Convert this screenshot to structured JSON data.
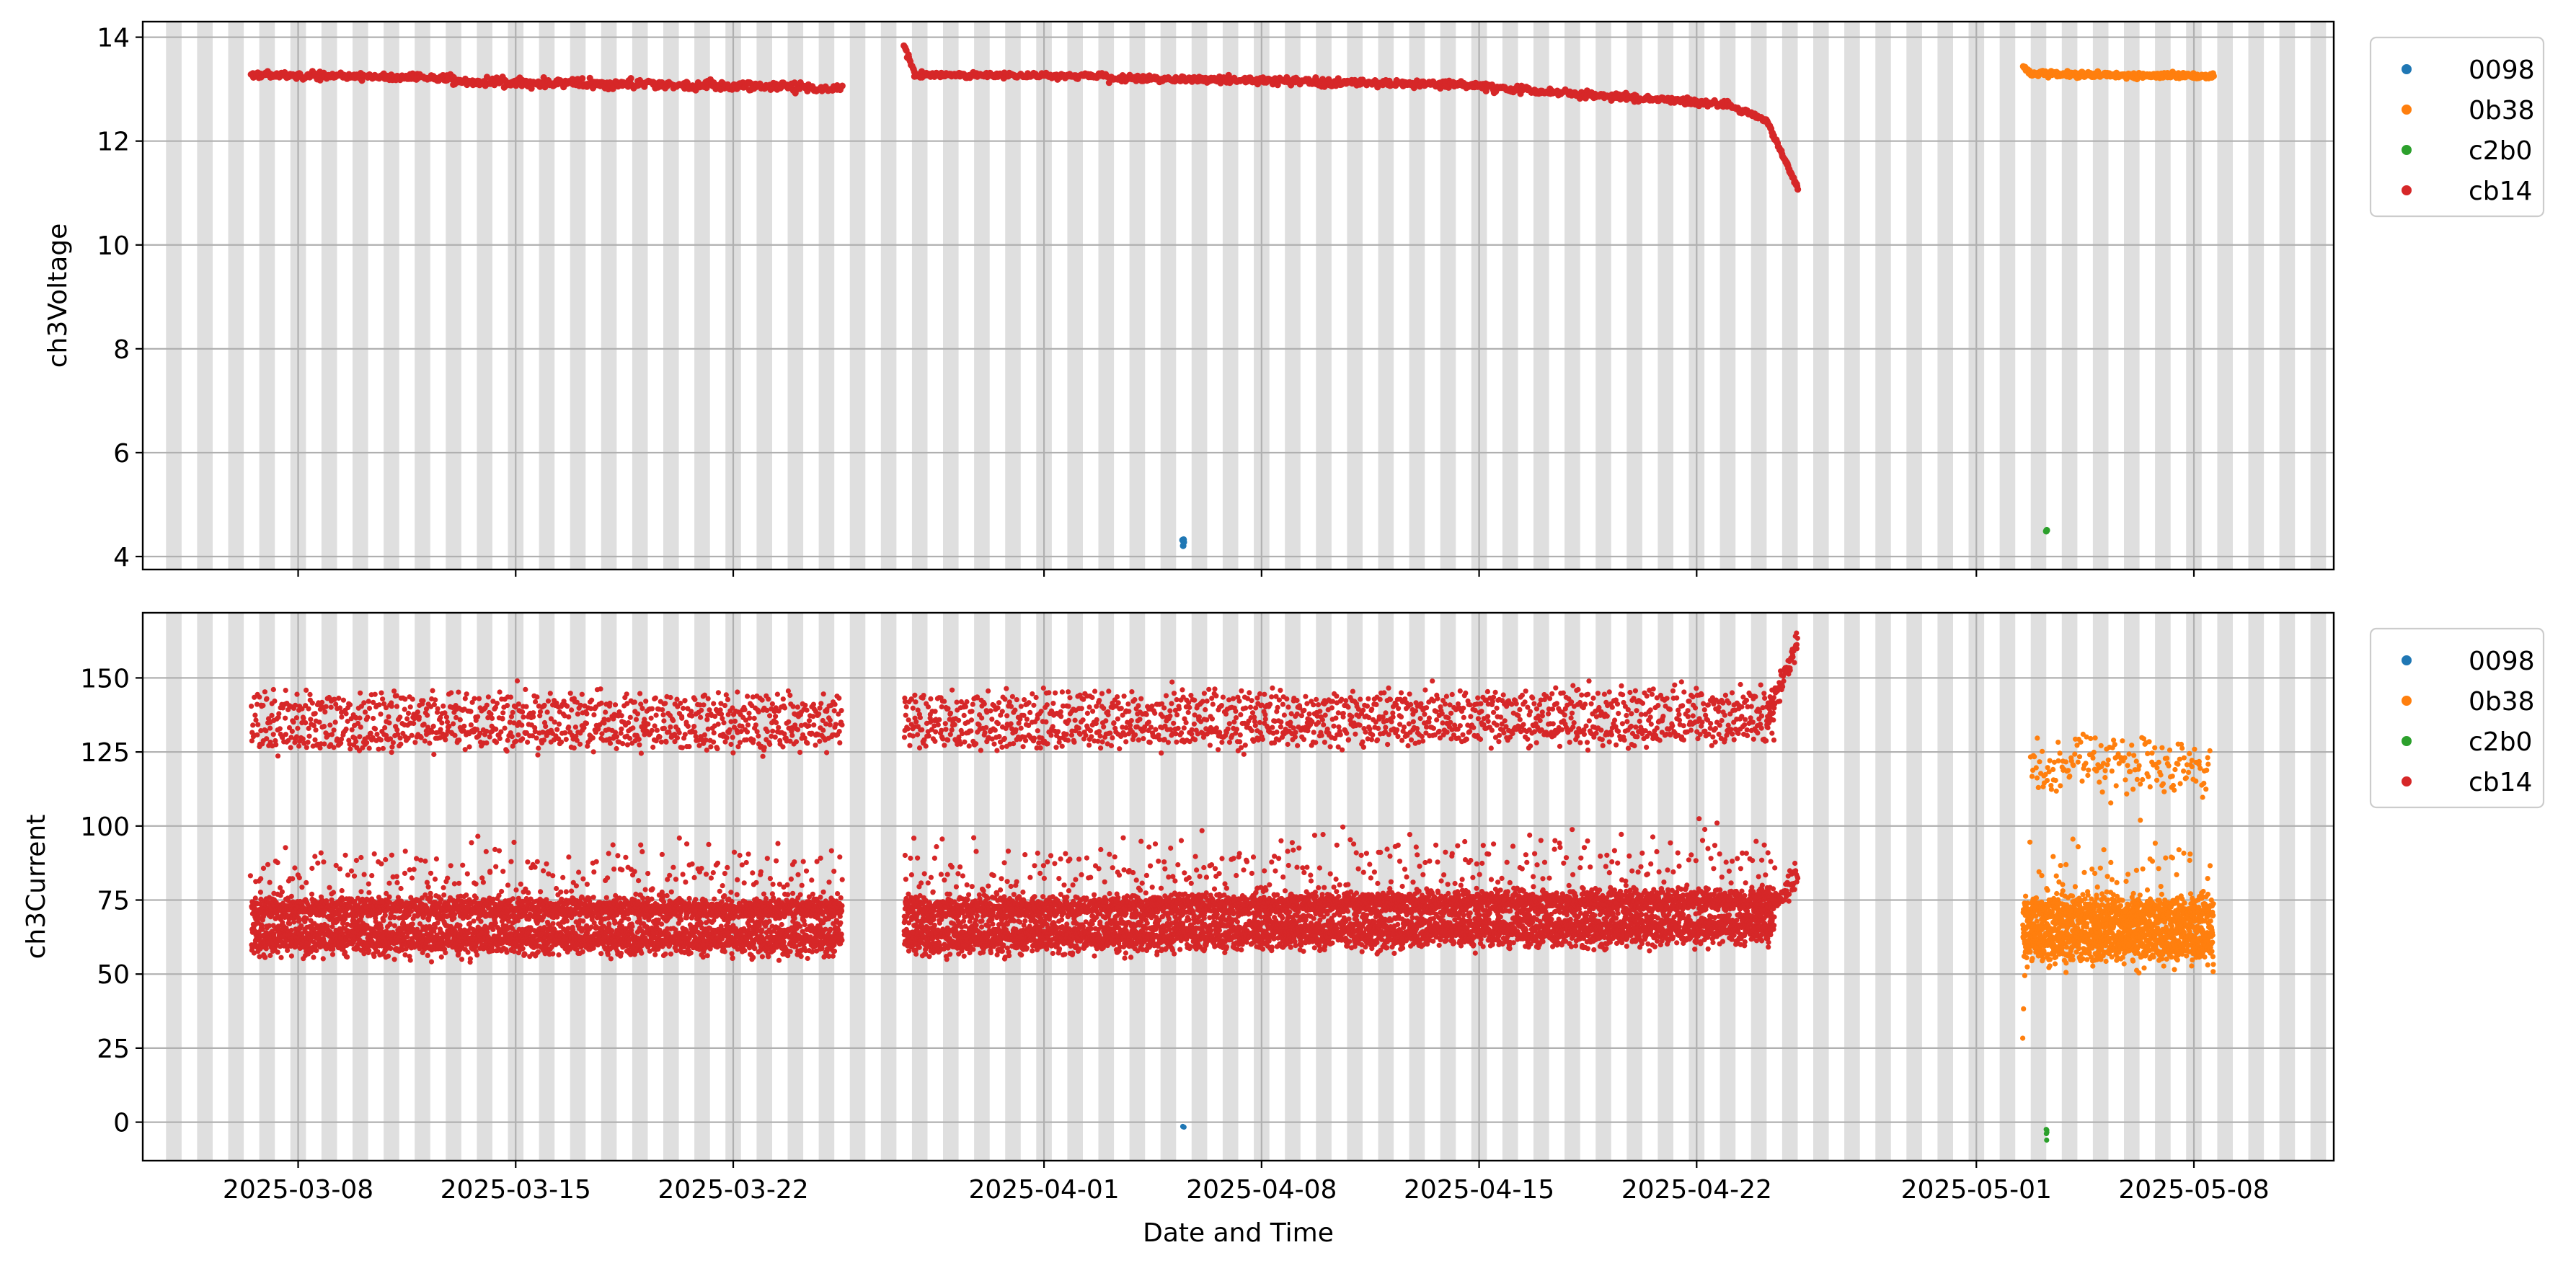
{
  "chart_data": [
    {
      "type": "scatter",
      "title": "",
      "xlabel": "",
      "ylabel": "ch3Voltage",
      "xlim": [
        "2025-03-03T00:00",
        "2025-05-12T12:00"
      ],
      "ylim": [
        3.75,
        14.3
      ],
      "yticks": [
        4,
        6,
        8,
        10,
        12,
        14
      ],
      "grid": true,
      "legend": {
        "placement": "outside-top-right",
        "entries": [
          "0098",
          "0b38",
          "c2b0",
          "cb14"
        ]
      },
      "series": [
        {
          "name": "0098",
          "color": "#1f77b4",
          "segments": [
            {
              "from": "2025-04-05T11:00",
              "to": "2025-04-05T12:00",
              "v0": 4.4,
              "v1": 4.25,
              "spread": 0.15,
              "n": 4
            }
          ]
        },
        {
          "name": "0b38",
          "color": "#ff7f0e",
          "segments": [
            {
              "from": "2025-05-02T12:00",
              "to": "2025-05-02T19:00",
              "v0": 13.45,
              "v1": 13.32,
              "spread": 0.04,
              "n": 12
            },
            {
              "from": "2025-05-02T19:00",
              "to": "2025-05-08T15:00",
              "v0": 13.3,
              "v1": 13.25,
              "spread": 0.04,
              "n": 260
            }
          ]
        },
        {
          "name": "c2b0",
          "color": "#2ca02c",
          "segments": [
            {
              "from": "2025-05-03T06:00",
              "to": "2025-05-03T06:30",
              "v0": 4.5,
              "v1": 4.5,
              "spread": 0.02,
              "n": 2
            }
          ]
        },
        {
          "name": "cb14",
          "color": "#d62728",
          "segments": [
            {
              "from": "2025-03-06T12:00",
              "to": "2025-03-13T00:00",
              "v0": 13.28,
              "v1": 13.22,
              "spread": 0.05,
              "n": 200
            },
            {
              "from": "2025-03-13T00:00",
              "to": "2025-03-25T12:00",
              "v0": 13.15,
              "v1": 13.02,
              "spread": 0.06,
              "n": 360
            },
            {
              "from": "2025-03-27T12:00",
              "to": "2025-03-27T20:00",
              "v0": 13.85,
              "v1": 13.32,
              "spread": 0.04,
              "n": 14
            },
            {
              "from": "2025-03-27T20:00",
              "to": "2025-04-03T00:00",
              "v0": 13.28,
              "v1": 13.25,
              "spread": 0.04,
              "n": 190
            },
            {
              "from": "2025-04-03T00:00",
              "to": "2025-04-15T00:00",
              "v0": 13.22,
              "v1": 13.08,
              "spread": 0.05,
              "n": 340
            },
            {
              "from": "2025-04-15T00:00",
              "to": "2025-04-23T00:00",
              "v0": 13.05,
              "v1": 12.7,
              "spread": 0.05,
              "n": 240
            },
            {
              "from": "2025-04-23T00:00",
              "to": "2025-04-24T06:00",
              "v0": 12.7,
              "v1": 12.4,
              "spread": 0.04,
              "n": 40
            },
            {
              "from": "2025-04-24T06:00",
              "to": "2025-04-25T06:00",
              "v0": 12.4,
              "v1": 11.1,
              "spread": 0.03,
              "n": 55
            }
          ]
        }
      ]
    },
    {
      "type": "scatter",
      "title": "",
      "xlabel": "Date and Time",
      "ylabel": "ch3Current",
      "xlim": [
        "2025-03-03T00:00",
        "2025-05-12T12:00"
      ],
      "ylim": [
        -13,
        172
      ],
      "yticks": [
        0,
        25,
        50,
        75,
        100,
        125,
        150
      ],
      "xticks": [
        "2025-03-08",
        "2025-03-15",
        "2025-03-22",
        "2025-04-01",
        "2025-04-08",
        "2025-04-15",
        "2025-04-22",
        "2025-05-01",
        "2025-05-08"
      ],
      "grid": true,
      "legend": {
        "placement": "outside-top-right",
        "entries": [
          "0098",
          "0b38",
          "c2b0",
          "cb14"
        ]
      },
      "series": [
        {
          "name": "0098",
          "color": "#1f77b4",
          "segments": [
            {
              "from": "2025-04-05T11:00",
              "to": "2025-04-05T12:00",
              "v0": -2,
              "v1": -2,
              "spread": 1,
              "n": 3
            }
          ]
        },
        {
          "name": "0b38",
          "color": "#ff7f0e",
          "segments": [
            {
              "from": "2025-05-02T12:00",
              "to": "2025-05-08T15:00",
              "v0": 61,
              "v1": 61,
              "spread": 5,
              "n": 900
            },
            {
              "from": "2025-05-02T12:00",
              "to": "2025-05-08T15:00",
              "v0": 71,
              "v1": 71,
              "spread": 4,
              "n": 700
            },
            {
              "from": "2025-05-02T18:00",
              "to": "2025-05-08T12:00",
              "v0": 120,
              "v1": 120,
              "spread": 7,
              "n": 180
            },
            {
              "from": "2025-05-02T18:00",
              "to": "2025-05-08T12:00",
              "v0": 82,
              "v1": 82,
              "spread": 10,
              "n": 60
            },
            {
              "from": "2025-05-02T12:00",
              "to": "2025-05-02T14:00",
              "v0": 30,
              "v1": 55,
              "spread": 4,
              "n": 4
            }
          ]
        },
        {
          "name": "c2b0",
          "color": "#2ca02c",
          "segments": [
            {
              "from": "2025-05-03T06:00",
              "to": "2025-05-03T06:30",
              "v0": -4,
              "v1": -4,
              "spread": 2,
              "n": 5
            }
          ]
        },
        {
          "name": "cb14",
          "color": "#d62728",
          "segments": [
            {
              "from": "2025-03-06T12:00",
              "to": "2025-03-25T12:00",
              "v0": 62,
              "v1": 62,
              "spread": 4,
              "n": 2200
            },
            {
              "from": "2025-03-06T12:00",
              "to": "2025-03-25T12:00",
              "v0": 72,
              "v1": 72,
              "spread": 3,
              "n": 1800
            },
            {
              "from": "2025-03-06T12:00",
              "to": "2025-03-25T12:00",
              "v0": 131,
              "v1": 131,
              "spread": 4,
              "n": 550
            },
            {
              "from": "2025-03-06T12:00",
              "to": "2025-03-25T12:00",
              "v0": 140,
              "v1": 140,
              "spread": 4,
              "n": 450
            },
            {
              "from": "2025-03-06T12:00",
              "to": "2025-03-25T12:00",
              "v0": 84,
              "v1": 84,
              "spread": 8,
              "n": 230
            },
            {
              "from": "2025-03-27T12:00",
              "to": "2025-04-24T12:00",
              "v0": 62,
              "v1": 66,
              "spread": 4,
              "n": 3300
            },
            {
              "from": "2025-03-27T12:00",
              "to": "2025-04-24T12:00",
              "v0": 72,
              "v1": 75,
              "spread": 3,
              "n": 2700
            },
            {
              "from": "2025-03-27T12:00",
              "to": "2025-04-24T12:00",
              "v0": 131,
              "v1": 133,
              "spread": 4,
              "n": 850
            },
            {
              "from": "2025-03-27T12:00",
              "to": "2025-04-24T12:00",
              "v0": 140,
              "v1": 142,
              "spread": 4,
              "n": 650
            },
            {
              "from": "2025-03-27T12:00",
              "to": "2025-04-24T12:00",
              "v0": 84,
              "v1": 86,
              "spread": 8,
              "n": 340
            },
            {
              "from": "2025-04-24T06:00",
              "to": "2025-04-25T06:00",
              "v0": 136,
              "v1": 162,
              "spread": 3,
              "n": 70
            },
            {
              "from": "2025-04-24T06:00",
              "to": "2025-04-25T06:00",
              "v0": 70,
              "v1": 84,
              "spread": 3,
              "n": 70
            }
          ]
        }
      ]
    }
  ]
}
